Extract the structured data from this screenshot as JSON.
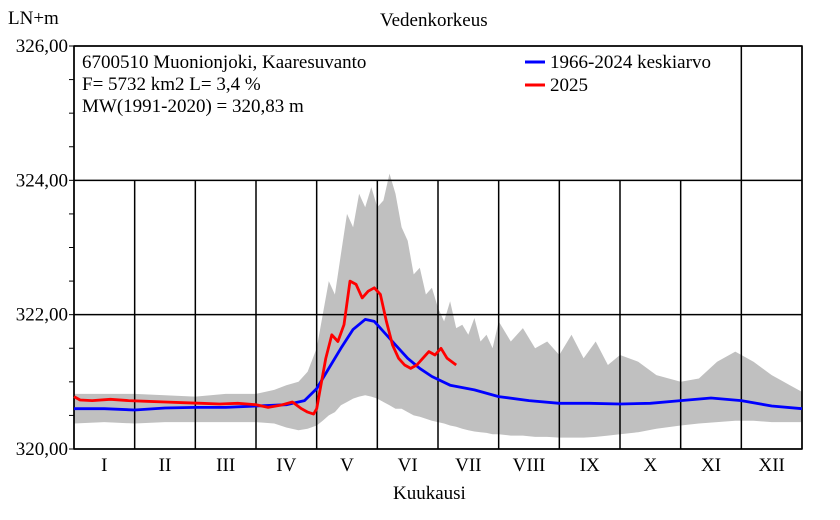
{
  "chart_data": {
    "type": "line",
    "title": "Vedenkorkeus",
    "ylabel": "LN+m",
    "xlabel": "Kuukausi",
    "ylim": [
      320,
      326
    ],
    "yticks": [
      "320,00",
      "322,00",
      "324,00",
      "326,00"
    ],
    "yticks_values": [
      320,
      322,
      324,
      326
    ],
    "months": [
      "I",
      "II",
      "III",
      "IV",
      "V",
      "VI",
      "VII",
      "VIII",
      "IX",
      "X",
      "XI",
      "XII"
    ],
    "info_lines": [
      "6700510 Muonionjoki, Kaaresuvanto",
      "F=   5732 km2 L=  3,4 %",
      "MW(1991-2020) = 320,83 m"
    ],
    "legend": [
      {
        "label": "1966-2024 keskiarvo",
        "color": "#0000ff"
      },
      {
        "label": "2025",
        "color": "#ff0000"
      }
    ],
    "range_color": "#c0c0c0",
    "series": [
      {
        "name": "1966-2024 keskiarvo",
        "color": "#0000ff",
        "x": [
          0,
          0.5,
          1,
          1.5,
          2,
          2.5,
          3,
          3.5,
          3.8,
          4.0,
          4.2,
          4.4,
          4.6,
          4.8,
          4.95,
          5.1,
          5.3,
          5.5,
          5.7,
          5.9,
          6.2,
          6.6,
          7.0,
          7.5,
          8.0,
          8.5,
          9.0,
          9.5,
          10.0,
          10.5,
          11.0,
          11.5,
          12.0
        ],
        "values": [
          320.6,
          320.6,
          320.58,
          320.61,
          320.62,
          320.62,
          320.64,
          320.66,
          320.72,
          320.9,
          321.2,
          321.5,
          321.78,
          321.93,
          321.9,
          321.75,
          321.55,
          321.35,
          321.2,
          321.08,
          320.95,
          320.88,
          320.78,
          320.72,
          320.68,
          320.68,
          320.67,
          320.68,
          320.72,
          320.76,
          320.72,
          320.64,
          320.6
        ]
      },
      {
        "name": "2025",
        "color": "#ff0000",
        "x": [
          0,
          0.1,
          0.3,
          0.6,
          0.9,
          1.2,
          1.5,
          1.8,
          2.1,
          2.4,
          2.7,
          3.0,
          3.2,
          3.4,
          3.6,
          3.75,
          3.85,
          3.95,
          4.0,
          4.05,
          4.15,
          4.25,
          4.35,
          4.45,
          4.55,
          4.65,
          4.75,
          4.85,
          4.95,
          5.05,
          5.15,
          5.25,
          5.35,
          5.45,
          5.55,
          5.65,
          5.75,
          5.85,
          5.95,
          6.05,
          6.15,
          6.3
        ],
        "values": [
          320.78,
          320.73,
          320.72,
          320.74,
          320.72,
          320.71,
          320.7,
          320.69,
          320.68,
          320.67,
          320.68,
          320.66,
          320.62,
          320.65,
          320.7,
          320.6,
          320.55,
          320.52,
          320.6,
          320.85,
          321.35,
          321.7,
          321.6,
          321.85,
          322.5,
          322.45,
          322.25,
          322.35,
          322.4,
          322.3,
          321.9,
          321.55,
          321.35,
          321.25,
          321.2,
          321.25,
          321.35,
          321.45,
          321.4,
          321.5,
          321.35,
          321.25
        ]
      }
    ],
    "range_band": {
      "x": [
        0,
        0.5,
        1,
        1.5,
        2,
        2.5,
        3,
        3.3,
        3.5,
        3.7,
        3.85,
        4.0,
        4.1,
        4.2,
        4.3,
        4.4,
        4.5,
        4.6,
        4.7,
        4.8,
        4.9,
        5.0,
        5.1,
        5.2,
        5.3,
        5.4,
        5.5,
        5.6,
        5.7,
        5.8,
        5.9,
        6.0,
        6.1,
        6.2,
        6.3,
        6.4,
        6.5,
        6.6,
        6.7,
        6.8,
        6.9,
        7.0,
        7.2,
        7.4,
        7.6,
        7.8,
        8.0,
        8.2,
        8.4,
        8.6,
        8.8,
        9.0,
        9.3,
        9.6,
        10.0,
        10.3,
        10.6,
        10.9,
        11.2,
        11.5,
        11.8,
        12.0
      ],
      "upper": [
        320.82,
        320.82,
        320.82,
        320.8,
        320.78,
        320.82,
        320.82,
        320.88,
        320.95,
        321.0,
        321.15,
        321.5,
        322.0,
        322.5,
        322.3,
        322.9,
        323.5,
        323.3,
        323.8,
        323.6,
        323.9,
        323.6,
        323.7,
        324.1,
        323.8,
        323.3,
        323.1,
        322.6,
        322.7,
        322.3,
        322.4,
        322.1,
        321.9,
        322.2,
        321.8,
        321.85,
        321.7,
        321.95,
        321.6,
        321.7,
        321.5,
        321.9,
        321.6,
        321.8,
        321.5,
        321.6,
        321.4,
        321.7,
        321.35,
        321.6,
        321.25,
        321.4,
        321.3,
        321.1,
        321.0,
        321.05,
        321.3,
        321.45,
        321.3,
        321.1,
        320.95,
        320.85
      ],
      "lower": [
        320.38,
        320.4,
        320.38,
        320.4,
        320.4,
        320.4,
        320.4,
        320.38,
        320.32,
        320.28,
        320.3,
        320.35,
        320.42,
        320.5,
        320.55,
        320.65,
        320.7,
        320.75,
        320.78,
        320.8,
        320.78,
        320.75,
        320.7,
        320.65,
        320.6,
        320.6,
        320.55,
        320.5,
        320.48,
        320.45,
        320.42,
        320.4,
        320.38,
        320.35,
        320.33,
        320.3,
        320.28,
        320.26,
        320.25,
        320.24,
        320.22,
        320.22,
        320.2,
        320.2,
        320.18,
        320.18,
        320.17,
        320.17,
        320.17,
        320.18,
        320.2,
        320.22,
        320.25,
        320.3,
        320.35,
        320.38,
        320.4,
        320.42,
        320.42,
        320.4,
        320.4,
        320.4
      ]
    }
  }
}
